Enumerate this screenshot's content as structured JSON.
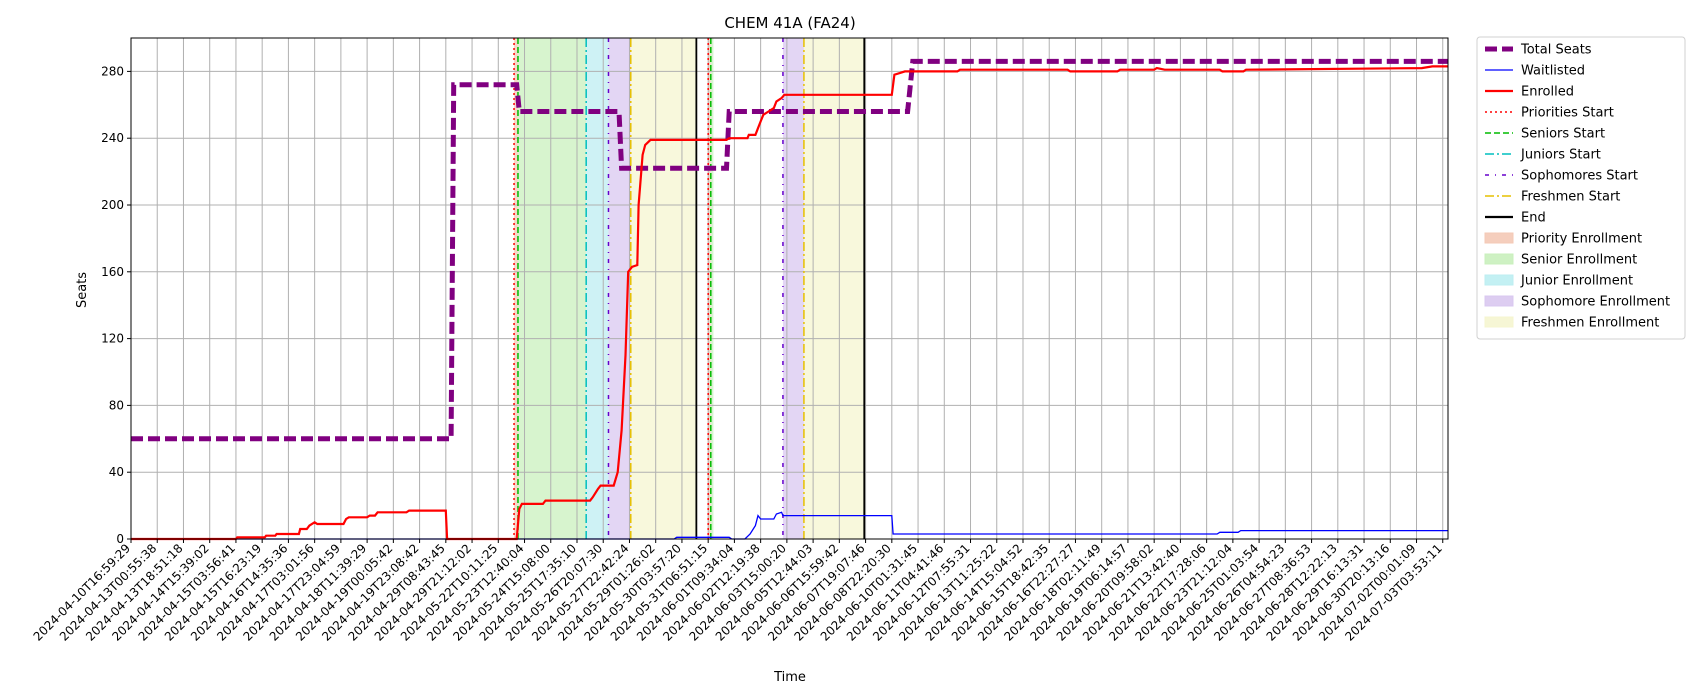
{
  "chart_data": {
    "type": "line",
    "title": "CHEM 41A (FA24)",
    "xlabel": "Time",
    "ylabel": "Seats",
    "ylim": [
      0,
      300
    ],
    "yticks": [
      0,
      40,
      80,
      120,
      160,
      200,
      240,
      280
    ],
    "grid": true,
    "legend_position": "outside-right",
    "x_tick_labels": [
      "2024-04-10T16:59:29",
      "2024-04-13T00:55:38",
      "2024-04-13T18:51:18",
      "2024-04-14T15:39:02",
      "2024-04-15T03:56:41",
      "2024-04-15T16:23:19",
      "2024-04-16T14:35:36",
      "2024-04-17T03:01:56",
      "2024-04-17T23:04:59",
      "2024-04-18T11:39:29",
      "2024-04-19T00:05:42",
      "2024-04-19T23:08:42",
      "2024-04-29T08:43:45",
      "2024-04-29T21:12:02",
      "2024-05-22T10:11:25",
      "2024-05-23T12:40:04",
      "2024-05-24T15:08:00",
      "2024-05-25T17:35:10",
      "2024-05-26T20:07:30",
      "2024-05-27T22:42:24",
      "2024-05-29T01:26:02",
      "2024-05-30T03:57:20",
      "2024-05-31T06:51:15",
      "2024-06-01T09:34:04",
      "2024-06-02T12:19:38",
      "2024-06-03T15:00:20",
      "2024-06-05T12:44:03",
      "2024-06-06T15:59:42",
      "2024-06-07T19:07:46",
      "2024-06-08T22:20:30",
      "2024-06-10T01:31:45",
      "2024-06-11T04:41:46",
      "2024-06-12T07:55:31",
      "2024-06-13T11:25:22",
      "2024-06-14T15:04:52",
      "2024-06-15T18:42:35",
      "2024-06-16T22:27:27",
      "2024-06-18T02:11:49",
      "2024-06-19T06:14:57",
      "2024-06-20T09:58:02",
      "2024-06-21T13:42:40",
      "2024-06-22T17:28:06",
      "2024-06-23T21:12:04",
      "2024-06-25T01:03:54",
      "2024-06-26T04:54:23",
      "2024-06-27T08:36:53",
      "2024-06-28T12:22:13",
      "2024-06-29T16:13:31",
      "2024-06-30T20:13:16",
      "2024-07-02T00:01:09",
      "2024-07-03T03:53:11"
    ],
    "series": [
      {
        "name": "Total Seats",
        "color": "#800080",
        "style": "dashed-thick",
        "points": [
          [
            0,
            60
          ],
          [
            12.2,
            60
          ],
          [
            12.3,
            272
          ],
          [
            14.7,
            272
          ],
          [
            14.8,
            256
          ],
          [
            18.6,
            256
          ],
          [
            18.7,
            222
          ],
          [
            22.7,
            222
          ],
          [
            22.8,
            256
          ],
          [
            29.6,
            256
          ],
          [
            29.8,
            286
          ],
          [
            50.2,
            286
          ]
        ]
      },
      {
        "name": "Waitlisted",
        "color": "#0000ff",
        "style": "solid-thin",
        "points": [
          [
            0,
            0
          ],
          [
            20.7,
            0
          ],
          [
            20.8,
            1
          ],
          [
            22.8,
            1
          ],
          [
            22.9,
            0
          ],
          [
            23.4,
            0
          ],
          [
            23.6,
            3
          ],
          [
            23.8,
            8
          ],
          [
            23.9,
            14
          ],
          [
            24.0,
            12
          ],
          [
            24.5,
            12
          ],
          [
            24.6,
            15
          ],
          [
            24.8,
            16
          ],
          [
            24.85,
            14
          ],
          [
            27.4,
            14
          ],
          [
            27.5,
            14
          ],
          [
            29.0,
            14
          ],
          [
            29.05,
            3
          ],
          [
            41.4,
            3
          ],
          [
            41.5,
            4
          ],
          [
            42.2,
            4
          ],
          [
            42.3,
            5
          ],
          [
            50.2,
            5
          ]
        ]
      },
      {
        "name": "Enrolled",
        "color": "#ff0000",
        "style": "solid",
        "points": [
          [
            0,
            0
          ],
          [
            4.0,
            0
          ],
          [
            4.05,
            1
          ],
          [
            5.1,
            1
          ],
          [
            5.15,
            2
          ],
          [
            5.5,
            2
          ],
          [
            5.55,
            3
          ],
          [
            6.4,
            3
          ],
          [
            6.45,
            6
          ],
          [
            6.7,
            6
          ],
          [
            6.8,
            8
          ],
          [
            7.0,
            10
          ],
          [
            7.1,
            9
          ],
          [
            8.1,
            9
          ],
          [
            8.2,
            12
          ],
          [
            8.3,
            13
          ],
          [
            9.0,
            13
          ],
          [
            9.1,
            14
          ],
          [
            9.3,
            14
          ],
          [
            9.4,
            16
          ],
          [
            10.5,
            16
          ],
          [
            10.6,
            17
          ],
          [
            12.0,
            17
          ],
          [
            12.05,
            0
          ],
          [
            14.7,
            0
          ],
          [
            14.8,
            18
          ],
          [
            14.9,
            21
          ],
          [
            15.7,
            21
          ],
          [
            15.8,
            23
          ],
          [
            17.5,
            23
          ],
          [
            17.6,
            25
          ],
          [
            17.8,
            30
          ],
          [
            17.9,
            32
          ],
          [
            18.4,
            32
          ],
          [
            18.55,
            40
          ],
          [
            18.7,
            65
          ],
          [
            18.85,
            110
          ],
          [
            18.95,
            160
          ],
          [
            19.1,
            163
          ],
          [
            19.3,
            164
          ],
          [
            19.35,
            200
          ],
          [
            19.5,
            230
          ],
          [
            19.6,
            236
          ],
          [
            19.8,
            239
          ],
          [
            22.7,
            239
          ],
          [
            22.8,
            240
          ],
          [
            23.5,
            240
          ],
          [
            23.55,
            242
          ],
          [
            23.8,
            242
          ],
          [
            23.9,
            246
          ],
          [
            24.0,
            250
          ],
          [
            24.1,
            254
          ],
          [
            24.3,
            256
          ],
          [
            24.5,
            258
          ],
          [
            24.6,
            262
          ],
          [
            24.8,
            264
          ],
          [
            24.9,
            266
          ],
          [
            29.0,
            266
          ],
          [
            29.1,
            278
          ],
          [
            29.3,
            279
          ],
          [
            29.5,
            280
          ],
          [
            31.5,
            280
          ],
          [
            31.6,
            281
          ],
          [
            35.7,
            281
          ],
          [
            35.8,
            280
          ],
          [
            37.6,
            280
          ],
          [
            37.7,
            281
          ],
          [
            39.0,
            281
          ],
          [
            39.1,
            282
          ],
          [
            39.4,
            281
          ],
          [
            41.5,
            281
          ],
          [
            41.6,
            280
          ],
          [
            42.4,
            280
          ],
          [
            42.5,
            281
          ],
          [
            49.2,
            282
          ],
          [
            49.6,
            283
          ],
          [
            50.2,
            283
          ]
        ]
      }
    ],
    "vlines": [
      {
        "name": "Priorities Start",
        "x": 14.6,
        "color": "#ff0000",
        "style": "dotted"
      },
      {
        "name": "Seniors Start",
        "x": 14.75,
        "color": "#00bb00",
        "style": "dashed"
      },
      {
        "name": "Juniors Start",
        "x": 17.35,
        "color": "#00bfbf",
        "style": "dashdot"
      },
      {
        "name": "Sophomores Start",
        "x": 18.2,
        "color": "#6600cc",
        "style": "dashdot-sparse"
      },
      {
        "name": "Freshmen Start",
        "x": 19.05,
        "color": "#e6c000",
        "style": "dashdot"
      },
      {
        "name": "End",
        "x": 21.55,
        "color": "#000000",
        "style": "solid"
      },
      {
        "name": "Priorities Start",
        "x": 22.0,
        "color": "#ff0000",
        "style": "dotted"
      },
      {
        "name": "Seniors Start",
        "x": 22.1,
        "color": "#00bb00",
        "style": "dashed"
      },
      {
        "name": "Sophomores Start",
        "x": 24.85,
        "color": "#6600cc",
        "style": "dashdot-sparse"
      },
      {
        "name": "Freshmen Start",
        "x": 25.65,
        "color": "#e6c000",
        "style": "dashdot"
      },
      {
        "name": "End",
        "x": 27.95,
        "color": "#000000",
        "style": "solid"
      }
    ],
    "spans": [
      {
        "name": "Priority Enrollment",
        "x0": 14.6,
        "x1": 14.75,
        "color": "#f4c9b6"
      },
      {
        "name": "Senior Enrollment",
        "x0": 14.75,
        "x1": 17.35,
        "color": "#c9f0bd"
      },
      {
        "name": "Junior Enrollment",
        "x0": 17.35,
        "x1": 18.2,
        "color": "#bdeef2"
      },
      {
        "name": "Sophomore Enrollment",
        "x0": 18.2,
        "x1": 19.05,
        "color": "#d9c8f0"
      },
      {
        "name": "Freshmen Enrollment",
        "x0": 19.05,
        "x1": 21.55,
        "color": "#f5f5d0"
      },
      {
        "name": "Priority Enrollment",
        "x0": 22.0,
        "x1": 22.1,
        "color": "#f4c9b6"
      },
      {
        "name": "Senior Enrollment",
        "x0": 22.1,
        "x1": 22.2,
        "color": "#c9f0bd"
      },
      {
        "name": "Sophomore Enrollment",
        "x0": 24.85,
        "x1": 25.65,
        "color": "#d9c8f0"
      },
      {
        "name": "Freshmen Enrollment",
        "x0": 25.65,
        "x1": 27.95,
        "color": "#f5f5d0"
      }
    ],
    "legend": [
      {
        "label": "Total Seats",
        "kind": "line",
        "color": "#800080",
        "style": "dashed-thick"
      },
      {
        "label": "Waitlisted",
        "kind": "line",
        "color": "#0000ff",
        "style": "solid-thin"
      },
      {
        "label": "Enrolled",
        "kind": "line",
        "color": "#ff0000",
        "style": "solid"
      },
      {
        "label": "Priorities Start",
        "kind": "line",
        "color": "#ff0000",
        "style": "dotted"
      },
      {
        "label": "Seniors Start",
        "kind": "line",
        "color": "#00bb00",
        "style": "dashed"
      },
      {
        "label": "Juniors Start",
        "kind": "line",
        "color": "#00bfbf",
        "style": "dashdot"
      },
      {
        "label": "Sophomores Start",
        "kind": "line",
        "color": "#6600cc",
        "style": "dashdot-sparse"
      },
      {
        "label": "Freshmen Start",
        "kind": "line",
        "color": "#e6c000",
        "style": "dashdot"
      },
      {
        "label": "End",
        "kind": "line",
        "color": "#000000",
        "style": "solid"
      },
      {
        "label": "Priority Enrollment",
        "kind": "patch",
        "color": "#f4c9b6"
      },
      {
        "label": "Senior Enrollment",
        "kind": "patch",
        "color": "#c9f0bd"
      },
      {
        "label": "Junior Enrollment",
        "kind": "patch",
        "color": "#bdeef2"
      },
      {
        "label": "Sophomore Enrollment",
        "kind": "patch",
        "color": "#d9c8f0"
      },
      {
        "label": "Freshmen Enrollment",
        "kind": "patch",
        "color": "#f5f5d0"
      }
    ]
  }
}
